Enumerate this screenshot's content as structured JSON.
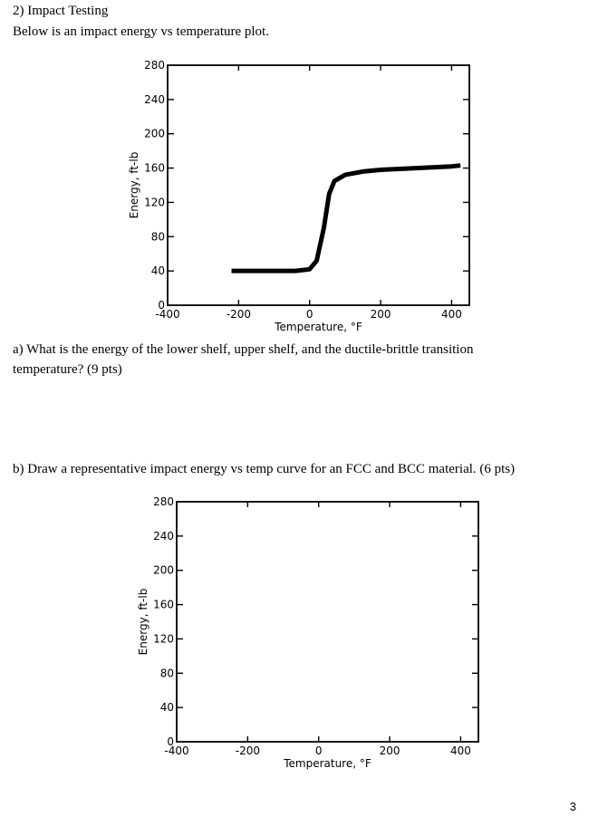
{
  "header": {
    "title": "2) Impact Testing",
    "intro": "Below is an impact energy vs temperature plot."
  },
  "question_a": {
    "line1": "a) What is the energy of the lower shelf, upper shelf, and the ductile-brittle transition",
    "line2": "temperature?  (9 pts)"
  },
  "question_b": {
    "text": "b)  Draw a representative impact energy vs temp curve for an FCC and BCC material.  (6 pts)"
  },
  "chart_data": [
    {
      "type": "line",
      "title": "",
      "xlabel": "Temperature, °F",
      "ylabel": "Energy, ft-lb",
      "xlim": [
        -400,
        450
      ],
      "ylim": [
        0,
        280
      ],
      "x_ticks": [
        "-400",
        "-200",
        "0",
        "200",
        "400"
      ],
      "y_ticks": [
        "0",
        "40",
        "80",
        "120",
        "160",
        "200",
        "240",
        "280"
      ],
      "grid": false,
      "series": [
        {
          "x": [
            -220,
            -100,
            -40,
            0,
            20,
            40,
            55,
            70,
            100,
            150,
            200,
            300,
            400,
            425
          ],
          "y": [
            40,
            40,
            40,
            42,
            52,
            90,
            130,
            145,
            152,
            156,
            158,
            160,
            162,
            163
          ]
        }
      ]
    },
    {
      "type": "line",
      "title": "",
      "xlabel": "Temperature, °F",
      "ylabel": "Energy, ft-lb",
      "xlim": [
        -400,
        450
      ],
      "ylim": [
        0,
        280
      ],
      "x_ticks": [
        "-400",
        "-200",
        "0",
        "200",
        "400"
      ],
      "y_ticks": [
        "0",
        "40",
        "80",
        "120",
        "160",
        "200",
        "240",
        "280"
      ],
      "grid": false,
      "series": []
    }
  ],
  "page_number": "3"
}
